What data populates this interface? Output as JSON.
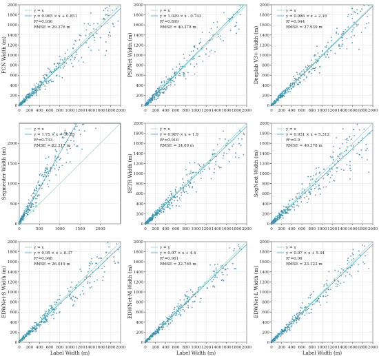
{
  "colors": {
    "points": "#2e86a8",
    "identity_line": "#8fd9c4",
    "fit_line": "#2aa4c4",
    "axis": "#333333",
    "grid": "#e2e2e2"
  },
  "chart_data": [
    {
      "type": "scatter",
      "ylabel": "FCN Width (m)",
      "xlabel": "",
      "xlim": [
        0,
        2000
      ],
      "ylim": [
        0,
        2000
      ],
      "xticks": [
        "0",
        "200",
        "400",
        "600",
        "800",
        "1000",
        "1200",
        "1400",
        "1600",
        "1800",
        "2000"
      ],
      "yticks": [
        "0",
        "200",
        "400",
        "600",
        "800",
        "1000",
        "1200",
        "1400",
        "1600",
        "1800",
        "2000"
      ],
      "legend": [
        "y = x",
        "y = 0.965 × x + 0.851"
      ],
      "fit": {
        "slope": 0.965,
        "intercept": 0.851
      },
      "stats": [
        "R²=0.936",
        "RMSE = 29.376 m"
      ],
      "grid": true,
      "legend_position": "top-left"
    },
    {
      "type": "scatter",
      "ylabel": "PSPNet Width (m)",
      "xlabel": "",
      "xlim": [
        0,
        2000
      ],
      "ylim": [
        0,
        2000
      ],
      "xticks": [
        "0",
        "200",
        "400",
        "600",
        "800",
        "1000",
        "1200",
        "1400",
        "1600",
        "1800",
        "2000"
      ],
      "yticks": [
        "0",
        "200",
        "400",
        "600",
        "800",
        "1000",
        "1200",
        "1400",
        "1600",
        "1800",
        "2000"
      ],
      "legend": [
        "y = x",
        "y = 1.029 × x - 0.743"
      ],
      "fit": {
        "slope": 1.029,
        "intercept": -0.743
      },
      "stats": [
        "R²=0.899",
        "RMSE = 40.378 m"
      ],
      "grid": true,
      "legend_position": "top-left"
    },
    {
      "type": "scatter",
      "ylabel": "Deeplab V3+ Width (m)",
      "xlabel": "",
      "xlim": [
        0,
        2000
      ],
      "ylim": [
        0,
        2000
      ],
      "xticks": [
        "0",
        "200",
        "400",
        "600",
        "800",
        "1000",
        "1200",
        "1400",
        "1600",
        "1800",
        "2000"
      ],
      "yticks": [
        "0",
        "200",
        "400",
        "600",
        "800",
        "1000",
        "1200",
        "1400",
        "1600",
        "1800",
        "2000"
      ],
      "legend": [
        "y = x",
        "y = 0.986 × x + 2.16"
      ],
      "fit": {
        "slope": 0.986,
        "intercept": 2.16
      },
      "stats": [
        "R²=0.944",
        "RMSE = 27.939 m"
      ],
      "grid": true,
      "legend_position": "top-left"
    },
    {
      "type": "scatter",
      "ylabel": "Segmenter Width (m)",
      "xlabel": "",
      "xlim": [
        0,
        2500
      ],
      "ylim": [
        0,
        2500
      ],
      "xticks": [
        "0",
        "500",
        "1000",
        "1500",
        "2000"
      ],
      "yticks": [
        "0",
        "500",
        "1000",
        "1500",
        "2000"
      ],
      "legend": [
        "y = x",
        "y = 1.75 × x + 10.85"
      ],
      "fit": {
        "slope": 1.75,
        "intercept": 10.85
      },
      "stats": [
        "R²=0.733",
        "RMSE = 82.317 m"
      ],
      "grid": true,
      "legend_position": "top-left"
    },
    {
      "type": "scatter",
      "ylabel": "SETR Width (m)",
      "xlabel": "",
      "xlim": [
        0,
        2000
      ],
      "ylim": [
        0,
        2000
      ],
      "xticks": [
        "0",
        "200",
        "400",
        "600",
        "800",
        "1000",
        "1200",
        "1400",
        "1600",
        "1800",
        "2000"
      ],
      "yticks": [
        "0",
        "200",
        "400",
        "600",
        "800",
        "1000",
        "1200",
        "1400",
        "1600",
        "1800",
        "2000"
      ],
      "legend": [
        "y = x",
        "y = 0.967 × x + 1.9"
      ],
      "fit": {
        "slope": 0.967,
        "intercept": 1.9
      },
      "stats": [
        "R²=0.916",
        "RMSE = 34.09 m"
      ],
      "grid": true,
      "legend_position": "top-left"
    },
    {
      "type": "scatter",
      "ylabel": "SegNext Width (m)",
      "xlabel": "",
      "xlim": [
        0,
        2000
      ],
      "ylim": [
        0,
        2000
      ],
      "xticks": [
        "0",
        "200",
        "400",
        "600",
        "800",
        "1000",
        "1200",
        "1400",
        "1600",
        "1800",
        "2000"
      ],
      "yticks": [
        "0",
        "200",
        "400",
        "600",
        "800",
        "1000",
        "1200",
        "1400",
        "1600",
        "1800",
        "2000"
      ],
      "legend": [
        "y = x",
        "y = 0.931 × x + 5.312"
      ],
      "fit": {
        "slope": 0.931,
        "intercept": 5.312
      },
      "stats": [
        "R²=0.9",
        "RMSE = 40.378 m"
      ],
      "grid": true,
      "legend_position": "top-left"
    },
    {
      "type": "scatter",
      "ylabel": "EDWNet-S Width (m)",
      "xlabel": "Label Width (m)",
      "xlim": [
        0,
        2000
      ],
      "ylim": [
        0,
        2000
      ],
      "xticks": [
        "0",
        "200",
        "400",
        "600",
        "800",
        "1000",
        "1200",
        "1400",
        "1600",
        "1800",
        "2000"
      ],
      "yticks": [
        "0",
        "200",
        "400",
        "600",
        "800",
        "1000",
        "1200",
        "1400",
        "1600",
        "1800",
        "2000"
      ],
      "legend": [
        "y = x",
        "y = 0.95 × x + 8.37"
      ],
      "fit": {
        "slope": 0.95,
        "intercept": 8.37
      },
      "stats": [
        "R²=0.948",
        "RMSE = 26.019 m"
      ],
      "grid": true,
      "legend_position": "top-left"
    },
    {
      "type": "scatter",
      "ylabel": "EDWNet-M Width (m)",
      "xlabel": "Label Width (m)",
      "xlim": [
        0,
        2000
      ],
      "ylim": [
        0,
        2000
      ],
      "xticks": [
        "0",
        "200",
        "400",
        "600",
        "800",
        "1000",
        "1200",
        "1400",
        "1600",
        "1800",
        "2000"
      ],
      "yticks": [
        "0",
        "200",
        "400",
        "600",
        "800",
        "1000",
        "1200",
        "1400",
        "1600",
        "1800",
        "2000"
      ],
      "legend": [
        "y = x",
        "y = 0.97 × x + 4.4"
      ],
      "fit": {
        "slope": 0.97,
        "intercept": 4.4
      },
      "stats": [
        "R²=0.961",
        "RMSE = 22.765 m"
      ],
      "grid": true,
      "legend_position": "top-left"
    },
    {
      "type": "scatter",
      "ylabel": "EDWNet-L Width (m)",
      "xlabel": "Label Width (m)",
      "xlim": [
        0,
        2000
      ],
      "ylim": [
        0,
        2000
      ],
      "xticks": [
        "0",
        "200",
        "400",
        "600",
        "800",
        "1000",
        "1200",
        "1400",
        "1600",
        "1800",
        "2000"
      ],
      "yticks": [
        "0",
        "200",
        "400",
        "600",
        "800",
        "1000",
        "1200",
        "1400",
        "1600",
        "1800",
        "2000"
      ],
      "legend": [
        "y = x",
        "y = 0.97 × x + 5.34"
      ],
      "fit": {
        "slope": 0.97,
        "intercept": 5.34
      },
      "stats": [
        "R²=0.96",
        "RMSE = 23.123 m"
      ],
      "grid": true,
      "legend_position": "top-left"
    }
  ]
}
